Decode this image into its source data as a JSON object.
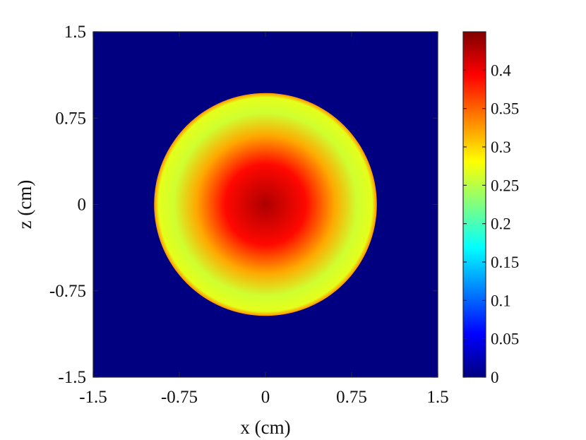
{
  "chart_data": {
    "type": "heatmap",
    "title": "",
    "xlabel": "x (cm)",
    "ylabel": "z (cm)",
    "xlim": [
      -1.5,
      1.5
    ],
    "ylim": [
      -1.5,
      1.5
    ],
    "x_ticks": [
      -1.5,
      -0.75,
      0,
      0.75,
      1.5
    ],
    "x_tick_labels": [
      "-1.5",
      "-0.75",
      "0",
      "0.75",
      "1.5"
    ],
    "y_ticks": [
      -1.5,
      -0.75,
      0,
      0.75,
      1.5
    ],
    "y_tick_labels": [
      "-1.5",
      "-0.75",
      "0",
      "0.75",
      "1.5"
    ],
    "colormap": "jet",
    "colorbar": {
      "limits": [
        0,
        0.45
      ],
      "ticks": [
        0,
        0.05,
        0.1,
        0.15,
        0.2,
        0.25,
        0.3,
        0.35,
        0.4
      ],
      "tick_labels": [
        "0",
        "0.05",
        "0.1",
        "0.15",
        "0.2",
        "0.25",
        "0.3",
        "0.35",
        "0.4"
      ],
      "placement": "right"
    },
    "field": {
      "shape": "disk",
      "center": [
        0,
        0
      ],
      "radius": 0.97,
      "background_value": 0,
      "radial_profile": {
        "r": [
          0,
          0.35,
          0.6,
          0.8,
          0.93,
          0.97
        ],
        "value": [
          0.43,
          0.39,
          0.32,
          0.26,
          0.27,
          0.33
        ]
      }
    },
    "grid": false
  }
}
